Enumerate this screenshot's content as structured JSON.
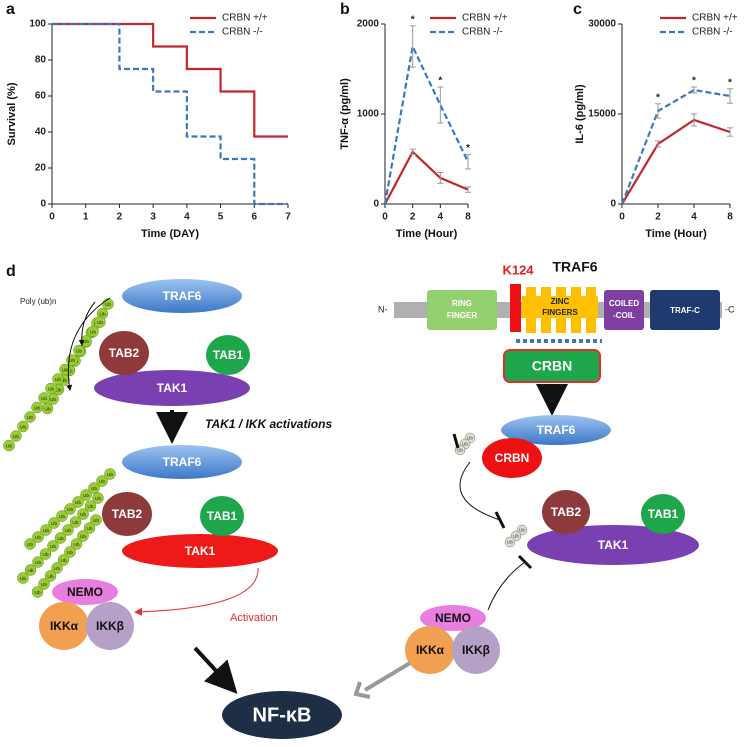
{
  "chart_data": [
    {
      "type": "line",
      "panel_label": "a",
      "step": "post",
      "xlabel": "Time (DAY)",
      "ylabel": "Survival (%)",
      "x": [
        0,
        1,
        2,
        3,
        4,
        5,
        6,
        7
      ],
      "xlim": [
        0,
        7
      ],
      "xticks": [
        0,
        1,
        2,
        3,
        4,
        5,
        6,
        7
      ],
      "ylim": [
        0,
        100
      ],
      "yticks": [
        0,
        20,
        40,
        60,
        80,
        100
      ],
      "legend": "upper right",
      "series": [
        {
          "name": "CRBN +/+",
          "color": "#c0282d",
          "dashed": false,
          "values": [
            100,
            100,
            100,
            87.5,
            75,
            62.5,
            37.5,
            37.5
          ]
        },
        {
          "name": "CRBN -/-",
          "color": "#3a78c2",
          "dashed": true,
          "values": [
            100,
            100,
            75,
            62.5,
            37.5,
            25,
            0,
            0
          ]
        }
      ]
    },
    {
      "type": "line",
      "panel_label": "b",
      "xlabel": "Time (Hour)",
      "ylabel": "TNF-α (pg/ml)",
      "categories": [
        "0",
        "2",
        "4",
        "8"
      ],
      "ylim": [
        0,
        2000
      ],
      "yticks": [
        0,
        1000,
        2000
      ],
      "legend": "upper right",
      "significance": [
        null,
        "*",
        "*",
        "*"
      ],
      "series": [
        {
          "name": "CRBN +/+",
          "color": "#c0282d",
          "dashed": false,
          "values": [
            0,
            580,
            290,
            160
          ],
          "errors": [
            0,
            30,
            60,
            30
          ]
        },
        {
          "name": "CRBN -/-",
          "color": "#3a78c2",
          "dashed": true,
          "values": [
            0,
            1750,
            1100,
            470
          ],
          "errors": [
            0,
            230,
            200,
            80
          ]
        }
      ]
    },
    {
      "type": "line",
      "panel_label": "c",
      "xlabel": "Time (Hour)",
      "ylabel": "IL-6 (pg/ml)",
      "categories": [
        "0",
        "2",
        "4",
        "8"
      ],
      "ylim": [
        0,
        30000
      ],
      "yticks": [
        0,
        15000,
        30000
      ],
      "legend": "upper right",
      "significance": [
        null,
        "*",
        "*",
        "*"
      ],
      "series": [
        {
          "name": "CRBN +/+",
          "color": "#c0282d",
          "dashed": false,
          "values": [
            0,
            10000,
            14000,
            12000
          ],
          "errors": [
            0,
            500,
            1000,
            700
          ]
        },
        {
          "name": "CRBN -/-",
          "color": "#3a78c2",
          "dashed": true,
          "values": [
            0,
            15500,
            19000,
            18000
          ],
          "errors": [
            0,
            1200,
            500,
            1200
          ]
        }
      ]
    }
  ],
  "diagram": {
    "panel_label": "d",
    "poly_ub": "Poly (ub)n",
    "ub": "Ub",
    "left_top": {
      "traf6": "TRAF6",
      "tab2": "TAB2",
      "tab1": "TAB1",
      "tak1": "TAK1"
    },
    "step_label": "TAK1 / IKK activations",
    "left_bottom": {
      "traf6": "TRAF6",
      "tab2": "TAB2",
      "tab1": "TAB1",
      "tak1": "TAK1",
      "nemo": "NEMO",
      "ikka": "IKKα",
      "ikkb": "IKKβ",
      "activation": "Activation"
    },
    "domain": {
      "title": "TRAF6",
      "n": "N-",
      "c": "-C",
      "site": "K124",
      "ring": [
        "RING",
        "FINGER"
      ],
      "zinc": [
        "ZINC",
        "FINGERS"
      ],
      "coiled": [
        "COILED",
        "-COIL"
      ],
      "trafc": "TRAF-C",
      "crbn": "CRBN"
    },
    "right": {
      "traf6": "TRAF6",
      "crbn": "CRBN",
      "tab2": "TAB2",
      "tab1": "TAB1",
      "tak1": "TAK1",
      "nemo": "NEMO",
      "ikka": "IKKα",
      "ikkb": "IKKβ"
    },
    "nfkb": "NF-κB"
  }
}
